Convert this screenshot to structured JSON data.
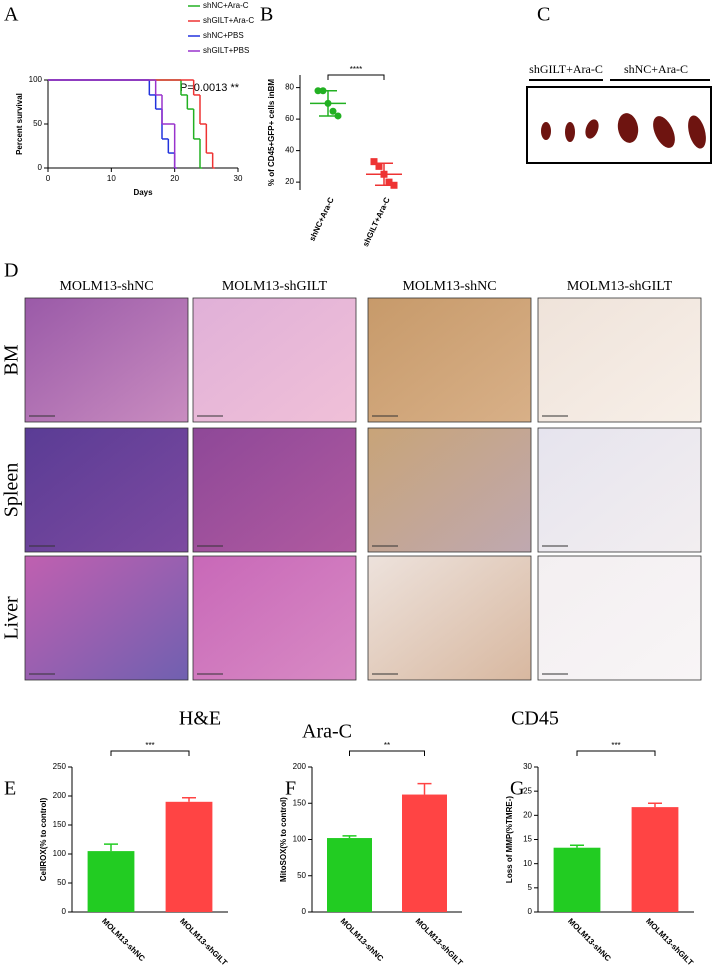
{
  "chart_data": [
    {
      "type": "line",
      "x_label": "Days",
      "y_label": "Percent survival",
      "annotation": "P=0.0013 **",
      "xlim": [
        0,
        30
      ],
      "ylim": [
        0,
        100
      ],
      "xticks": [
        0,
        10,
        20,
        30
      ],
      "yticks": [
        0,
        50,
        100
      ],
      "series": [
        {
          "name": "shNC+Ara-C",
          "color": "#22b022",
          "x": [
            0,
            21,
            22,
            23,
            24
          ],
          "values": [
            100,
            83,
            67,
            33,
            0
          ]
        },
        {
          "name": "shGILT+Ara-C",
          "color": "#ee3333",
          "x": [
            0,
            23,
            24,
            25,
            26
          ],
          "values": [
            100,
            83,
            50,
            17,
            0
          ]
        },
        {
          "name": "shNC+PBS",
          "color": "#2233dd",
          "x": [
            0,
            16,
            17,
            18,
            19,
            20
          ],
          "values": [
            100,
            83,
            67,
            33,
            17,
            0
          ]
        },
        {
          "name": "shGILT+PBS",
          "color": "#9933cc",
          "x": [
            0,
            17,
            18,
            20
          ],
          "values": [
            100,
            83,
            50,
            0
          ]
        }
      ]
    },
    {
      "type": "dot",
      "y_label": "% of CD45+GFP+ cells inBM",
      "significance": "****",
      "categories": [
        "shNC+Ara-C",
        "shGILT+Ara-C"
      ],
      "colors": [
        "#22b022",
        "#ee3333"
      ],
      "values": [
        [
          78,
          78,
          70,
          65,
          62
        ],
        [
          33,
          30,
          25,
          20,
          18
        ]
      ],
      "means": [
        70,
        25
      ],
      "errors": [
        8,
        7
      ],
      "ylim": [
        15,
        88
      ],
      "yticks": [
        20,
        40,
        60,
        80
      ]
    },
    {
      "type": "bar",
      "y_label": "CellROX(% to control)",
      "significance": "***",
      "categories": [
        "MOLM13-shNC",
        "MOLM13-shGILT"
      ],
      "colors": [
        "#22cc22",
        "#ff4444"
      ],
      "values": [
        105,
        190
      ],
      "errors": [
        12,
        7
      ],
      "ylim": [
        0,
        250
      ],
      "yticks": [
        0,
        50,
        100,
        150,
        200,
        250
      ]
    },
    {
      "type": "bar",
      "y_label": "MitoSOX(% to control)",
      "significance": "**",
      "categories": [
        "MOLM13-shNC",
        "MOLM13-shGILT"
      ],
      "colors": [
        "#22cc22",
        "#ff4444"
      ],
      "values": [
        102,
        162
      ],
      "errors": [
        3,
        15
      ],
      "ylim": [
        0,
        200
      ],
      "yticks": [
        0,
        50,
        100,
        150,
        200
      ]
    },
    {
      "type": "bar",
      "y_label": "Loss of MMP(%TMRE-)",
      "significance": "***",
      "categories": [
        "MOLM13-shNC",
        "MOLM13-shGILT"
      ],
      "colors": [
        "#22cc22",
        "#ff4444"
      ],
      "values": [
        13.3,
        21.7
      ],
      "errors": [
        0.5,
        0.8
      ],
      "ylim": [
        0,
        30
      ],
      "yticks": [
        0,
        5,
        10,
        15,
        20,
        25,
        30
      ]
    }
  ],
  "figure": {
    "panel_labels": [
      "A",
      "B",
      "C",
      "D",
      "E",
      "F",
      "G"
    ],
    "panel_c": [
      "shGILT+Ara-C",
      "shNC+Ara-C"
    ],
    "panel_d": {
      "columns": [
        "MOLM13-shNC",
        "MOLM13-shGILT",
        "MOLM13-shNC",
        "MOLM13-shGILT"
      ],
      "rows": [
        "BM",
        "Spleen",
        "Liver"
      ],
      "footer": [
        "H&E",
        "Ara-C",
        "CD45"
      ]
    }
  }
}
